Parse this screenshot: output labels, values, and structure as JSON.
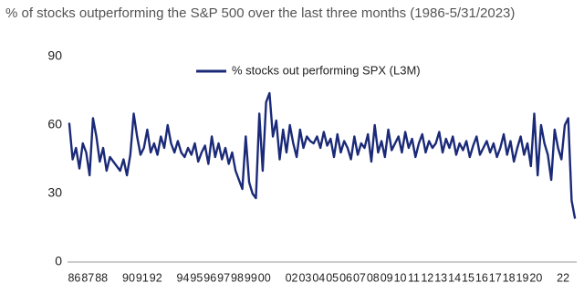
{
  "chart_data": {
    "type": "line",
    "title": "% of stocks outperforming the S&P 500 over the last three months (1986-5/31/2023)",
    "categories": [
      "86",
      null,
      null,
      null,
      "87",
      null,
      null,
      null,
      "88",
      null,
      null,
      null,
      null,
      null,
      null,
      null,
      "90",
      null,
      null,
      null,
      "91",
      null,
      null,
      null,
      "92",
      null,
      null,
      null,
      null,
      null,
      null,
      null,
      "94",
      null,
      null,
      null,
      "95",
      null,
      null,
      null,
      "96",
      null,
      null,
      null,
      "97",
      null,
      null,
      null,
      "98",
      null,
      null,
      null,
      "99",
      null,
      null,
      null,
      "00",
      null,
      null,
      null,
      null,
      null,
      null,
      null,
      "02",
      null,
      null,
      null,
      "03",
      null,
      null,
      null,
      "04",
      null,
      null,
      null,
      "05",
      null,
      null,
      null,
      "06",
      null,
      null,
      null,
      "07",
      null,
      null,
      null,
      "08",
      null,
      null,
      null,
      "09",
      null,
      null,
      null,
      "10",
      null,
      null,
      null,
      "11",
      null,
      null,
      null,
      "12",
      null,
      null,
      null,
      "13",
      null,
      null,
      null,
      "14",
      null,
      null,
      null,
      "15",
      null,
      null,
      null,
      "16",
      null,
      null,
      null,
      "17",
      null,
      null,
      null,
      "18",
      null,
      null,
      null,
      "19",
      null,
      null,
      null,
      "20",
      null,
      null,
      null,
      null,
      null,
      null,
      null,
      "22",
      null,
      null,
      null,
      null,
      null
    ],
    "series": [
      {
        "name": "% stocks out performing SPX (L3M)",
        "color": "#1b2a78",
        "values": [
          61,
          45,
          50,
          41,
          52,
          48,
          38,
          63,
          55,
          44,
          50,
          40,
          46,
          44,
          42,
          40,
          45,
          38,
          47,
          65,
          55,
          47,
          50,
          58,
          48,
          52,
          47,
          55,
          50,
          60,
          52,
          48,
          53,
          48,
          46,
          50,
          47,
          52,
          44,
          48,
          51,
          43,
          55,
          46,
          52,
          45,
          50,
          43,
          48,
          40,
          36,
          32,
          55,
          35,
          30,
          28,
          65,
          40,
          70,
          74,
          55,
          62,
          45,
          58,
          48,
          60,
          52,
          46,
          58,
          50,
          55,
          53,
          52,
          55,
          50,
          57,
          51,
          54,
          46,
          56,
          48,
          53,
          50,
          45,
          55,
          47,
          52,
          50,
          56,
          44,
          60,
          48,
          53,
          46,
          58,
          49,
          52,
          55,
          48,
          57,
          50,
          54,
          46,
          52,
          56,
          48,
          53,
          50,
          52,
          57,
          48,
          54,
          50,
          55,
          47,
          52,
          49,
          53,
          46,
          51,
          55,
          47,
          50,
          53,
          48,
          52,
          46,
          50,
          56,
          47,
          53,
          44,
          50,
          55,
          47,
          52,
          42,
          65,
          38,
          60,
          52,
          47,
          36,
          58,
          50,
          45,
          60,
          63,
          27,
          19
        ]
      }
    ],
    "ylim": [
      0,
      90
    ],
    "yticks": [
      0,
      30,
      60,
      90
    ],
    "grid": false
  }
}
